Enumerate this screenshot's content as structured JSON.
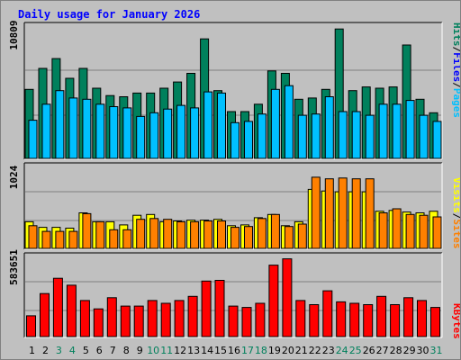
{
  "title": "Daily usage for January 2026",
  "colors": {
    "background": "#c0c0c0",
    "title": "#0000ff",
    "hits": "#00805c",
    "files": "#0000ff",
    "pages": "#00c0ff",
    "visits": "#ffff00",
    "sites": "#ff8000",
    "kbytes": "#ff0000",
    "weekend_day": "#00805c",
    "weekday_day": "#000000"
  },
  "legend": {
    "pages": "Pages",
    "files": "Files",
    "hits": "Hits",
    "sites": "Sites",
    "visits": "Visits",
    "kbytes": "KBytes",
    "separator": "/"
  },
  "chart_data": [
    {
      "type": "bar",
      "panel": "hits-files-pages",
      "ylabel": "10809",
      "ymax": 10809,
      "categories": [
        "1",
        "2",
        "3",
        "4",
        "5",
        "6",
        "7",
        "8",
        "9",
        "10",
        "11",
        "12",
        "13",
        "14",
        "15",
        "16",
        "17",
        "18",
        "19",
        "20",
        "21",
        "22",
        "23",
        "24",
        "25",
        "26",
        "27",
        "28",
        "29",
        "30",
        "31"
      ],
      "series": [
        {
          "name": "Hits",
          "values": [
            5600,
            7300,
            8100,
            6500,
            7300,
            5700,
            5100,
            5000,
            5300,
            5300,
            5700,
            6200,
            6900,
            9700,
            5500,
            3800,
            3800,
            4400,
            7100,
            6900,
            4800,
            4900,
            5600,
            10500,
            5500,
            5800,
            5700,
            5800,
            9200,
            4800,
            3700
          ]
        },
        {
          "name": "Pages",
          "values": [
            3100,
            4400,
            5500,
            4900,
            4800,
            4400,
            4200,
            4100,
            3400,
            3700,
            4000,
            4300,
            4100,
            5400,
            5300,
            2900,
            3000,
            3600,
            5600,
            5900,
            3500,
            3600,
            5000,
            3800,
            3800,
            3500,
            4400,
            4400,
            4700,
            3500,
            3000
          ]
        }
      ]
    },
    {
      "type": "bar",
      "panel": "visits-sites",
      "ylabel": "1024",
      "ymax": 1024,
      "categories": [
        "1",
        "2",
        "3",
        "4",
        "5",
        "6",
        "7",
        "8",
        "9",
        "10",
        "11",
        "12",
        "13",
        "14",
        "15",
        "16",
        "17",
        "18",
        "19",
        "20",
        "21",
        "22",
        "23",
        "24",
        "25",
        "26",
        "27",
        "28",
        "29",
        "30",
        "31"
      ],
      "series": [
        {
          "name": "Visits",
          "values": [
            330,
            260,
            260,
            250,
            440,
            330,
            330,
            290,
            410,
            420,
            330,
            340,
            350,
            350,
            360,
            280,
            290,
            380,
            420,
            280,
            330,
            730,
            710,
            700,
            700,
            700,
            460,
            470,
            450,
            440,
            460
          ]
        },
        {
          "name": "Sites",
          "values": [
            280,
            210,
            210,
            210,
            430,
            330,
            230,
            230,
            360,
            370,
            360,
            330,
            330,
            340,
            340,
            260,
            270,
            370,
            420,
            270,
            300,
            880,
            860,
            870,
            860,
            860,
            440,
            490,
            420,
            410,
            390
          ]
        }
      ]
    },
    {
      "type": "bar",
      "panel": "kbytes",
      "ylabel": "583651",
      "ymax": 583651,
      "categories": [
        "1",
        "2",
        "3",
        "4",
        "5",
        "6",
        "7",
        "8",
        "9",
        "10",
        "11",
        "12",
        "13",
        "14",
        "15",
        "16",
        "17",
        "18",
        "19",
        "20",
        "21",
        "22",
        "23",
        "24",
        "25",
        "26",
        "27",
        "28",
        "29",
        "30",
        "31"
      ],
      "series": [
        {
          "name": "KBytes",
          "values": [
            150000,
            310000,
            420000,
            370000,
            260000,
            200000,
            280000,
            220000,
            220000,
            260000,
            240000,
            260000,
            290000,
            400000,
            405000,
            220000,
            210000,
            240000,
            515000,
            560000,
            260000,
            230000,
            330000,
            250000,
            240000,
            230000,
            290000,
            230000,
            280000,
            260000,
            210000
          ]
        }
      ]
    }
  ]
}
